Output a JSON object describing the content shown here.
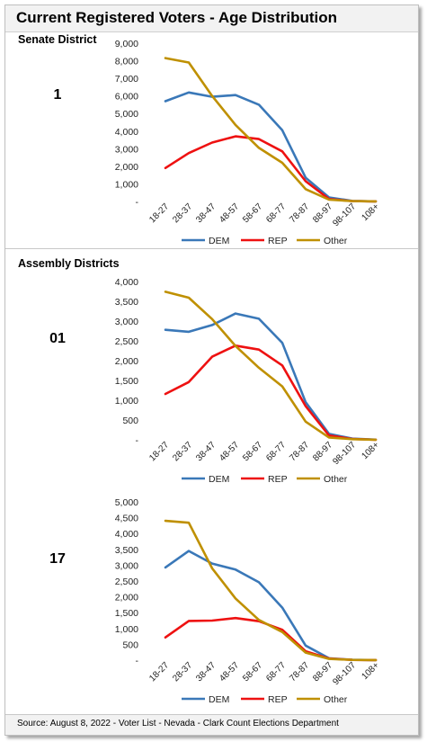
{
  "title": "Current Registered Voters - Age Distribution",
  "sections": {
    "senate_label": "Senate District",
    "assembly_label": "Assembly Districts"
  },
  "footer": "Source: August 8, 2022 - Voter List - Nevada - Clark Count Elections Department",
  "colors": {
    "DEM": "#3a78b8",
    "REP": "#ee1111",
    "Other": "#bf9000"
  },
  "chart_data": [
    {
      "type": "line",
      "district": "1",
      "categories": [
        "18-27",
        "28-37",
        "38-47",
        "48-57",
        "58-67",
        "68-77",
        "78-87",
        "88-97",
        "98-107",
        "108+"
      ],
      "yticks": [
        "-",
        "1,000",
        "2,000",
        "3,000",
        "4,000",
        "5,000",
        "6,000",
        "7,000",
        "8,000",
        "9,000"
      ],
      "ylim": [
        0,
        9000
      ],
      "legend": "bottom",
      "series": [
        {
          "name": "DEM",
          "values": [
            5700,
            6200,
            5950,
            6050,
            5500,
            4050,
            1350,
            230,
            30,
            5
          ]
        },
        {
          "name": "REP",
          "values": [
            1900,
            2750,
            3350,
            3700,
            3550,
            2850,
            1150,
            140,
            20,
            3
          ]
        },
        {
          "name": "Other",
          "values": [
            8150,
            7900,
            6000,
            4350,
            3050,
            2200,
            700,
            100,
            20,
            3
          ]
        }
      ]
    },
    {
      "type": "line",
      "district": "01",
      "categories": [
        "18-27",
        "28-37",
        "38-47",
        "48-57",
        "58-67",
        "68-77",
        "78-87",
        "88-97",
        "98-107",
        "108+"
      ],
      "yticks": [
        "-",
        "500",
        "1,000",
        "1,500",
        "2,000",
        "2,500",
        "3,000",
        "3,500",
        "4,000"
      ],
      "ylim": [
        0,
        4000
      ],
      "legend": "bottom",
      "series": [
        {
          "name": "DEM",
          "values": [
            2780,
            2730,
            2900,
            3190,
            3060,
            2450,
            950,
            150,
            30,
            5
          ]
        },
        {
          "name": "REP",
          "values": [
            1160,
            1460,
            2100,
            2380,
            2280,
            1880,
            850,
            110,
            20,
            3
          ]
        },
        {
          "name": "Other",
          "values": [
            3740,
            3590,
            3050,
            2370,
            1820,
            1350,
            460,
            60,
            15,
            3
          ]
        }
      ]
    },
    {
      "type": "line",
      "district": "17",
      "categories": [
        "18-27",
        "28-37",
        "38-47",
        "48-57",
        "58-67",
        "68-77",
        "78-87",
        "88-97",
        "98-107",
        "108+"
      ],
      "yticks": [
        "-",
        "500",
        "1,000",
        "1,500",
        "2,000",
        "2,500",
        "3,000",
        "3,500",
        "4,000",
        "4,500",
        "5,000"
      ],
      "ylim": [
        0,
        5000
      ],
      "legend": "bottom",
      "series": [
        {
          "name": "DEM",
          "values": [
            2930,
            3450,
            3050,
            2860,
            2460,
            1660,
            460,
            60,
            10,
            3
          ]
        },
        {
          "name": "REP",
          "values": [
            720,
            1240,
            1250,
            1330,
            1230,
            960,
            280,
            50,
            8,
            2
          ]
        },
        {
          "name": "Other",
          "values": [
            4400,
            4340,
            2900,
            1950,
            1270,
            890,
            240,
            40,
            8,
            2
          ]
        }
      ]
    }
  ]
}
